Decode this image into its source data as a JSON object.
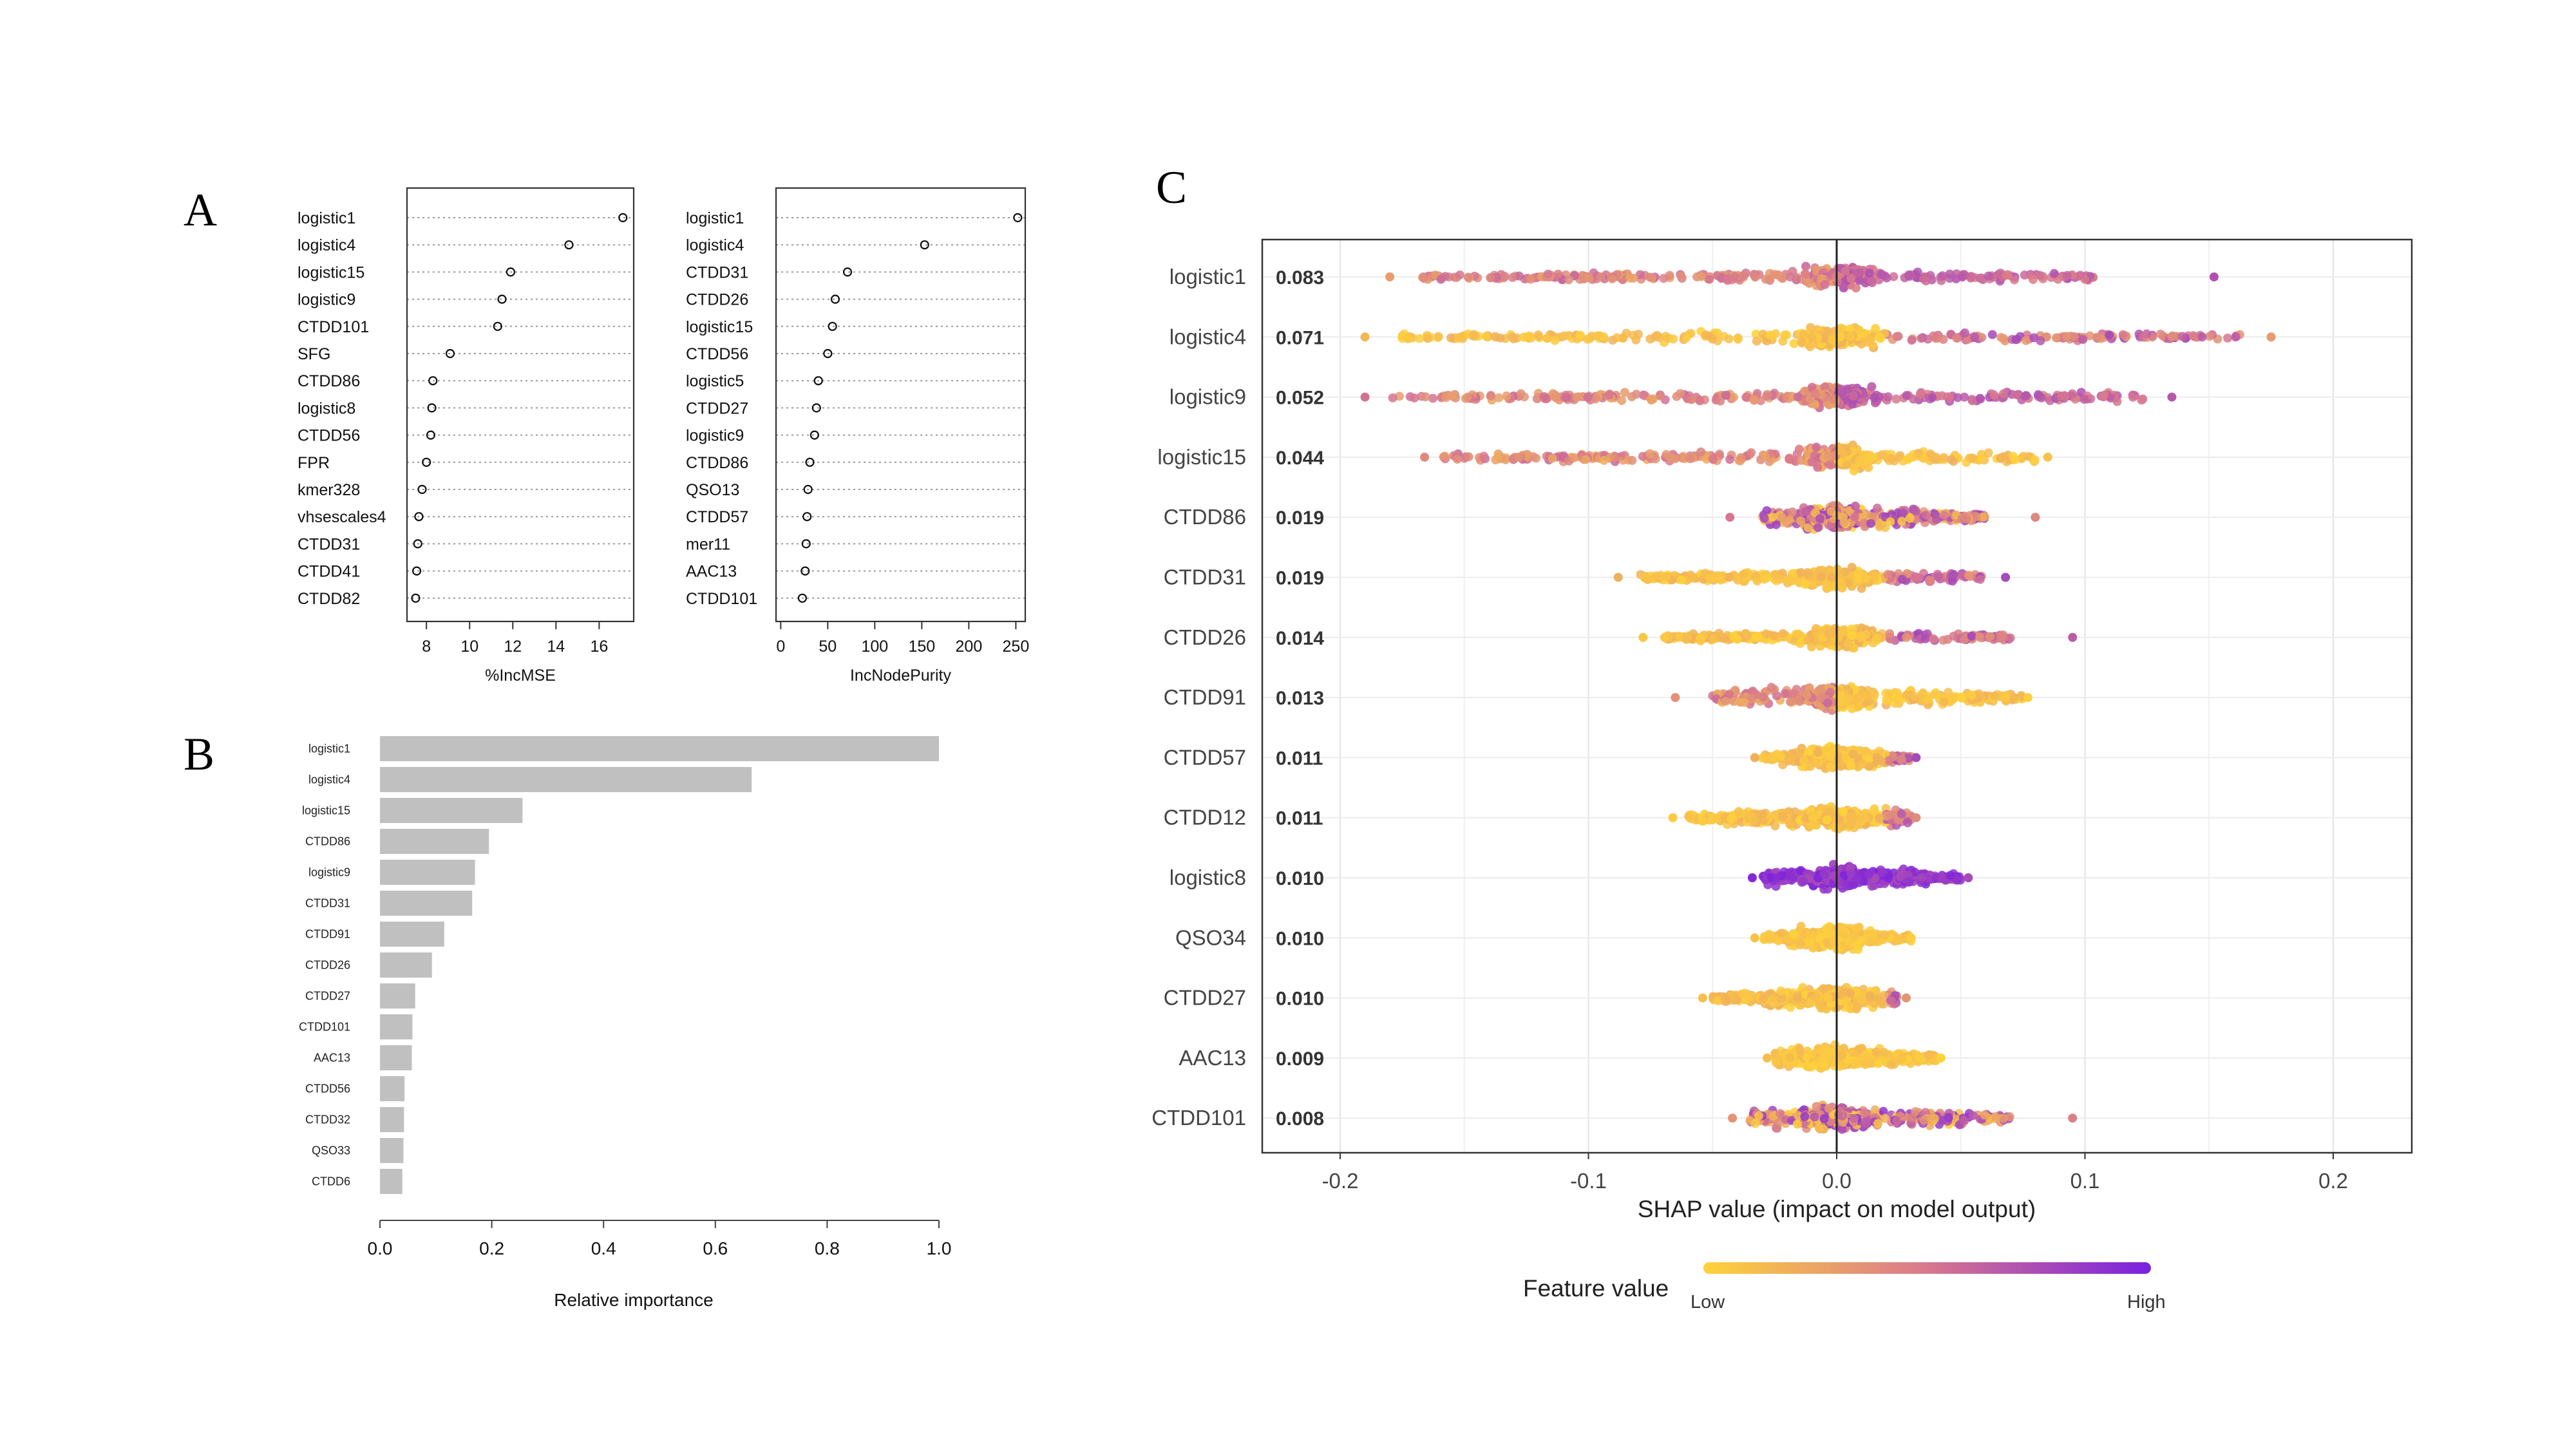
{
  "panels": [
    {
      "letter": "A",
      "chart_data": [
        {
          "type": "scatter",
          "subtype": "dotchart",
          "xlabel": "%IncMSE",
          "xticks": [
            8,
            10,
            12,
            14,
            16
          ],
          "xlim": [
            7.1,
            17.6
          ],
          "categories": [
            "logistic1",
            "logistic4",
            "logistic15",
            "logistic9",
            "CTDD101",
            "SFG",
            "CTDD86",
            "logistic8",
            "CTDD56",
            "FPR",
            "kmer328",
            "vhsescales4",
            "CTDD31",
            "CTDD41",
            "CTDD82"
          ],
          "values": [
            17.1,
            14.6,
            11.9,
            11.5,
            11.3,
            9.1,
            8.3,
            8.25,
            8.2,
            8.0,
            7.8,
            7.65,
            7.6,
            7.55,
            7.5
          ]
        },
        {
          "type": "scatter",
          "subtype": "dotchart",
          "xlabel": "IncNodePurity",
          "xticks": [
            0,
            50,
            100,
            150,
            200,
            250
          ],
          "xlim": [
            -5,
            260
          ],
          "categories": [
            "logistic1",
            "logistic4",
            "CTDD31",
            "CTDD26",
            "logistic15",
            "CTDD56",
            "logistic5",
            "CTDD27",
            "logistic9",
            "CTDD86",
            "QSO13",
            "CTDD57",
            "mer11",
            "AAC13",
            "CTDD101"
          ],
          "values": [
            252,
            153,
            71,
            58,
            55,
            50,
            40,
            38,
            36,
            31,
            29,
            28,
            27,
            26,
            23
          ]
        }
      ]
    },
    {
      "letter": "B",
      "chart_data": {
        "type": "bar",
        "orientation": "horizontal",
        "xlabel": "Relative importance",
        "xticks": [
          "0.0",
          "0.2",
          "0.4",
          "0.6",
          "0.8",
          "1.0"
        ],
        "xlim": [
          0,
          1
        ],
        "categories": [
          "logistic1",
          "logistic4",
          "logistic15",
          "CTDD86",
          "logistic9",
          "CTDD31",
          "CTDD91",
          "CTDD26",
          "CTDD27",
          "CTDD101",
          "AAC13",
          "CTDD56",
          "CTDD32",
          "QSO33",
          "CTDD6"
        ],
        "values": [
          1.0,
          0.665,
          0.255,
          0.195,
          0.17,
          0.165,
          0.115,
          0.093,
          0.063,
          0.058,
          0.057,
          0.044,
          0.043,
          0.042,
          0.04
        ]
      }
    },
    {
      "letter": "C",
      "chart_data": {
        "type": "scatter",
        "subtype": "shap-beeswarm",
        "xlabel": "SHAP value (impact on model output)",
        "xticks": [
          "-0.2",
          "-0.1",
          "0.0",
          "0.1",
          "0.2"
        ],
        "xlim": [
          -0.232,
          0.232
        ],
        "grid": true,
        "legend": {
          "title": "Feature value",
          "low_label": "Low",
          "high_label": "High",
          "placement": "bottom"
        },
        "colors": {
          "low": "#FFD23A",
          "mid": "#D8788E",
          "high": "#7A1FE0"
        },
        "features": [
          {
            "name": "logistic1",
            "mean_abs": "0.083",
            "min": -0.18,
            "max": 0.152,
            "core_lo": -0.17,
            "core_hi": 0.105,
            "mode": "split"
          },
          {
            "name": "logistic4",
            "mean_abs": "0.071",
            "min": -0.19,
            "max": 0.175,
            "core_lo": -0.18,
            "core_hi": 0.165,
            "mode": "low-left"
          },
          {
            "name": "logistic9",
            "mean_abs": "0.052",
            "min": -0.19,
            "max": 0.135,
            "core_lo": -0.18,
            "core_hi": 0.125,
            "mode": "split"
          },
          {
            "name": "logistic15",
            "mean_abs": "0.044",
            "min": -0.166,
            "max": 0.085,
            "core_lo": -0.16,
            "core_hi": 0.08,
            "mode": "low-right"
          },
          {
            "name": "CTDD86",
            "mean_abs": "0.019",
            "min": -0.043,
            "max": 0.08,
            "core_lo": -0.03,
            "core_hi": 0.06,
            "mode": "mixed"
          },
          {
            "name": "CTDD31",
            "mean_abs": "0.019",
            "min": -0.088,
            "max": 0.068,
            "core_lo": -0.08,
            "core_hi": 0.06,
            "mode": "low-left"
          },
          {
            "name": "CTDD26",
            "mean_abs": "0.014",
            "min": -0.078,
            "max": 0.095,
            "core_lo": -0.07,
            "core_hi": 0.07,
            "mode": "low-left"
          },
          {
            "name": "CTDD91",
            "mean_abs": "0.013",
            "min": -0.065,
            "max": 0.077,
            "core_lo": -0.05,
            "core_hi": 0.075,
            "mode": "low-right"
          },
          {
            "name": "CTDD57",
            "mean_abs": "0.011",
            "min": -0.033,
            "max": 0.032,
            "core_lo": -0.03,
            "core_hi": 0.03,
            "mode": "low-left"
          },
          {
            "name": "CTDD12",
            "mean_abs": "0.011",
            "min": -0.066,
            "max": 0.032,
            "core_lo": -0.06,
            "core_hi": 0.03,
            "mode": "low-left"
          },
          {
            "name": "logistic8",
            "mean_abs": "0.010",
            "min": -0.034,
            "max": 0.053,
            "core_lo": -0.03,
            "core_hi": 0.05,
            "mode": "high"
          },
          {
            "name": "QSO34",
            "mean_abs": "0.010",
            "min": -0.033,
            "max": 0.03,
            "core_lo": -0.03,
            "core_hi": 0.03,
            "mode": "low"
          },
          {
            "name": "CTDD27",
            "mean_abs": "0.010",
            "min": -0.054,
            "max": 0.028,
            "core_lo": -0.05,
            "core_hi": 0.025,
            "mode": "low-left"
          },
          {
            "name": "AAC13",
            "mean_abs": "0.009",
            "min": -0.028,
            "max": 0.042,
            "core_lo": -0.025,
            "core_hi": 0.04,
            "mode": "low"
          },
          {
            "name": "CTDD101",
            "mean_abs": "0.008",
            "min": -0.042,
            "max": 0.095,
            "core_lo": -0.035,
            "core_hi": 0.07,
            "mode": "mixed"
          }
        ]
      }
    }
  ]
}
